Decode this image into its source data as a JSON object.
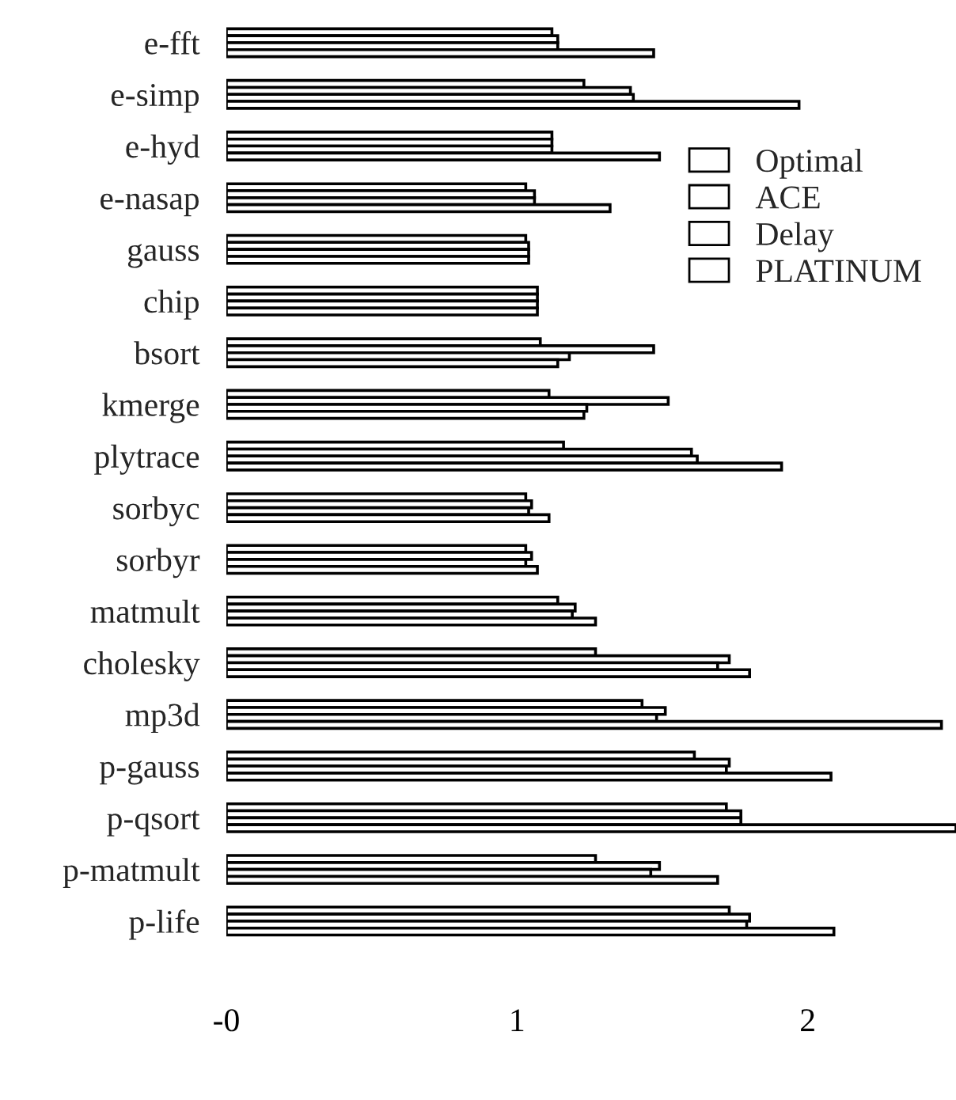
{
  "chart_data": {
    "type": "bar",
    "orientation": "horizontal",
    "categories": [
      "e-fft",
      "e-simp",
      "e-hyd",
      "e-nasap",
      "gauss",
      "chip",
      "bsort",
      "kmerge",
      "plytrace",
      "sorbyc",
      "sorbyr",
      "matmult",
      "cholesky",
      "mp3d",
      "p-gauss",
      "p-qsort",
      "p-matmult",
      "p-life"
    ],
    "series": [
      {
        "name": "Optimal",
        "color": "#ffffff",
        "values": [
          1.12,
          1.23,
          1.12,
          1.03,
          1.03,
          1.07,
          1.08,
          1.11,
          1.16,
          1.03,
          1.03,
          1.14,
          1.27,
          1.43,
          1.61,
          1.72,
          1.27,
          1.73
        ]
      },
      {
        "name": "ACE",
        "color": "#ffffff",
        "values": [
          1.14,
          1.39,
          1.12,
          1.06,
          1.04,
          1.07,
          1.47,
          1.52,
          1.6,
          1.05,
          1.05,
          1.2,
          1.73,
          1.51,
          1.73,
          1.77,
          1.49,
          1.8
        ]
      },
      {
        "name": "Delay",
        "color": "#ffffff",
        "values": [
          1.14,
          1.4,
          1.12,
          1.06,
          1.04,
          1.07,
          1.18,
          1.24,
          1.62,
          1.04,
          1.03,
          1.19,
          1.69,
          1.48,
          1.72,
          1.77,
          1.46,
          1.79
        ]
      },
      {
        "name": "PLATINUM",
        "color": "#ffffff",
        "values": [
          1.47,
          1.97,
          1.49,
          1.32,
          1.04,
          1.07,
          1.14,
          1.23,
          1.91,
          1.11,
          1.07,
          1.27,
          1.8,
          2.46,
          2.08,
          2.51,
          1.69,
          2.09
        ]
      }
    ],
    "xlim": [
      0,
      2.51
    ],
    "xticks": [
      {
        "value": 0,
        "label": "-0"
      },
      1,
      2
    ],
    "grid": false,
    "legend": "top right"
  }
}
